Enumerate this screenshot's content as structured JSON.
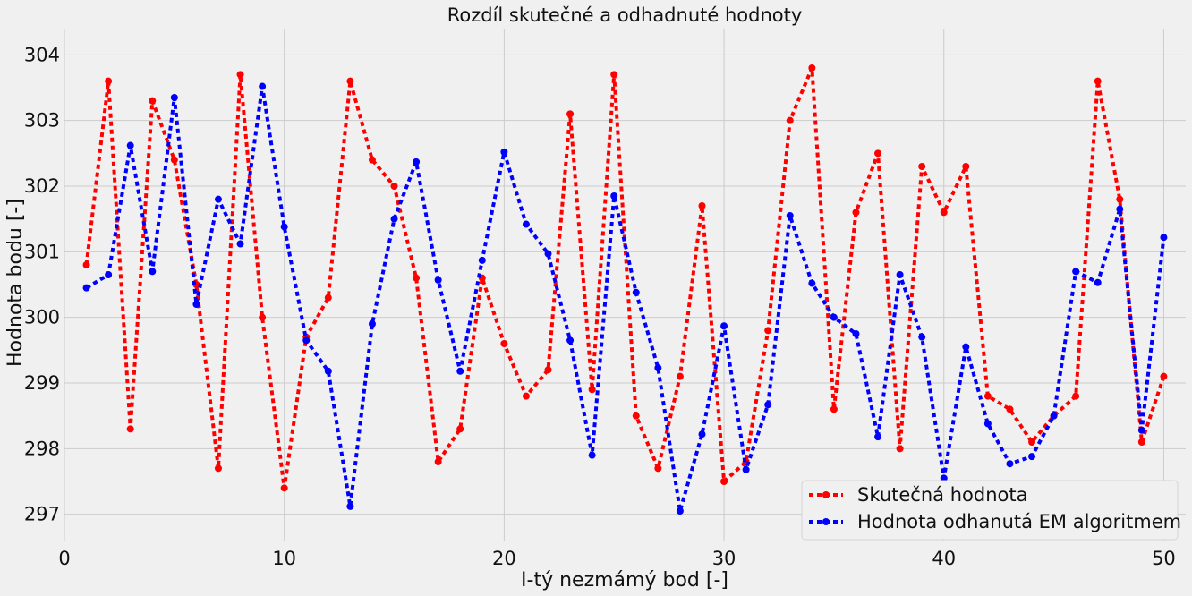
{
  "chart_data": {
    "type": "line",
    "title": "Rozdíl skutečné a odhadnuté hodnoty",
    "xlabel": "I-tý nezmámý bod [-]",
    "ylabel": "Hodnota bodu [-]",
    "xlim": [
      0,
      51
    ],
    "ylim": [
      296.6,
      304.4
    ],
    "xticks": [
      0,
      10,
      20,
      30,
      40,
      50
    ],
    "yticks": [
      297,
      298,
      299,
      300,
      301,
      302,
      303,
      304
    ],
    "grid": true,
    "legend_position": "lower-right",
    "x": [
      1,
      2,
      3,
      4,
      5,
      6,
      7,
      8,
      9,
      10,
      11,
      12,
      13,
      14,
      15,
      16,
      17,
      18,
      19,
      20,
      21,
      22,
      23,
      24,
      25,
      26,
      27,
      28,
      29,
      30,
      31,
      32,
      33,
      34,
      35,
      36,
      37,
      38,
      39,
      40,
      41,
      42,
      43,
      44,
      45,
      46,
      47,
      48,
      49,
      50
    ],
    "series": [
      {
        "name": "Skutečná hodnota",
        "color": "#ff0000",
        "values": [
          300.8,
          303.6,
          298.3,
          303.3,
          302.4,
          300.5,
          297.7,
          303.7,
          300.0,
          297.4,
          299.7,
          300.3,
          303.6,
          302.4,
          302.0,
          300.6,
          297.8,
          298.3,
          300.6,
          299.6,
          298.8,
          299.2,
          303.1,
          298.9,
          303.7,
          298.5,
          297.7,
          299.1,
          301.7,
          297.5,
          297.8,
          299.8,
          303.0,
          303.8,
          298.6,
          301.6,
          302.5,
          298.0,
          302.3,
          301.6,
          302.3,
          298.8,
          298.6,
          298.1,
          298.5,
          298.8,
          303.6,
          301.8,
          298.1,
          299.1
        ]
      },
      {
        "name": "Hodnota odhanutá EM algoritmem",
        "color": "#0000ff",
        "values": [
          300.45,
          300.65,
          302.62,
          300.7,
          303.35,
          300.2,
          301.8,
          301.12,
          303.52,
          301.38,
          299.65,
          299.18,
          297.12,
          299.9,
          301.5,
          302.37,
          300.57,
          299.18,
          300.87,
          302.52,
          301.42,
          300.97,
          299.65,
          297.9,
          301.85,
          300.38,
          299.23,
          297.05,
          298.22,
          299.87,
          297.68,
          298.67,
          301.55,
          300.52,
          300.0,
          299.75,
          298.18,
          300.65,
          299.7,
          297.55,
          299.55,
          298.38,
          297.77,
          297.88,
          298.5,
          300.7,
          300.53,
          301.65,
          298.28,
          301.22
        ]
      }
    ]
  }
}
